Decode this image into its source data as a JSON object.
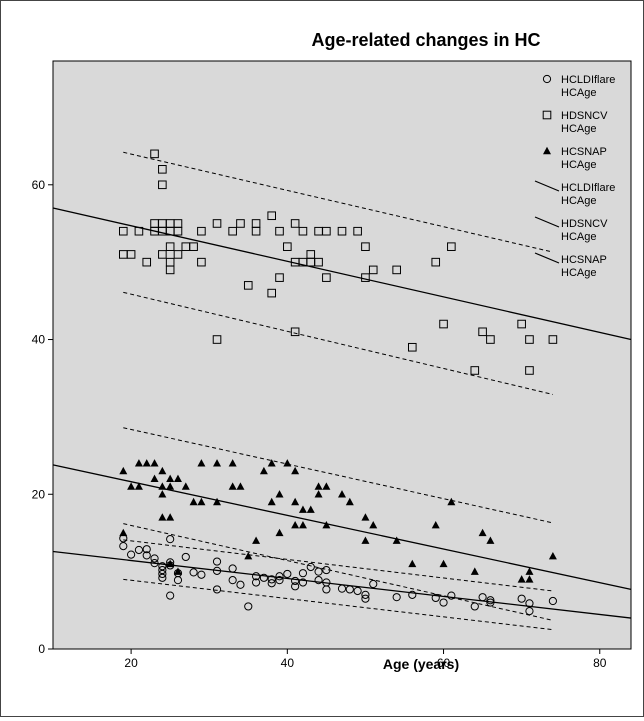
{
  "chart_data": {
    "type": "scatter",
    "title": "Age-related changes in HC",
    "xlabel": "Age (years)",
    "ylabel": "",
    "xlim": [
      10,
      84
    ],
    "ylim": [
      0,
      76
    ],
    "xticks": [
      20,
      40,
      60,
      80
    ],
    "yticks": [
      0,
      20,
      40,
      60
    ],
    "grid": false,
    "background_color": "#d9d9d9",
    "legend_position": "top-right",
    "legend": [
      {
        "label": "HCLDIflare HCAge",
        "lines": [
          "HCLDIflare",
          "HCAge"
        ],
        "marker": "circle"
      },
      {
        "label": "HDSNCV HCAge",
        "lines": [
          "HDSNCV",
          "HCAge"
        ],
        "marker": "square"
      },
      {
        "label": "HCSNAP HCAge",
        "lines": [
          "HCSNAP",
          "HCAge"
        ],
        "marker": "triangle"
      },
      {
        "label": "HCLDIflare HCAge",
        "lines": [
          "HCLDIflare",
          "HCAge"
        ],
        "marker": "line"
      },
      {
        "label": "HDSNCV HCAge",
        "lines": [
          "HDSNCV",
          "HCAge"
        ],
        "marker": "line"
      },
      {
        "label": "HCSNAP HCAge",
        "lines": [
          "HCSNAP",
          "HCAge"
        ],
        "marker": "line"
      }
    ],
    "series": [
      {
        "name": "HCLDIflare HCAge",
        "marker": "circle",
        "points": [
          [
            19,
            13.3
          ],
          [
            19,
            14.3
          ],
          [
            20,
            12.2
          ],
          [
            21,
            12.8
          ],
          [
            22,
            12.1
          ],
          [
            22,
            12.9
          ],
          [
            23,
            11.7
          ],
          [
            23,
            11.1
          ],
          [
            24,
            10.7
          ],
          [
            24,
            10.2
          ],
          [
            24,
            9.7
          ],
          [
            24,
            9.2
          ],
          [
            25,
            11.2
          ],
          [
            25,
            10.8
          ],
          [
            25,
            14.2
          ],
          [
            25,
            6.9
          ],
          [
            26,
            8.9
          ],
          [
            26,
            9.8
          ],
          [
            27,
            11.9
          ],
          [
            28,
            9.9
          ],
          [
            29,
            9.6
          ],
          [
            31,
            10.1
          ],
          [
            31,
            7.7
          ],
          [
            31,
            11.3
          ],
          [
            33,
            10.4
          ],
          [
            33,
            8.9
          ],
          [
            34,
            8.3
          ],
          [
            35,
            5.5
          ],
          [
            36,
            9.4
          ],
          [
            36,
            8.6
          ],
          [
            37,
            9.2
          ],
          [
            38,
            9.0
          ],
          [
            38,
            8.5
          ],
          [
            39,
            9.4
          ],
          [
            39,
            8.9
          ],
          [
            40,
            9.7
          ],
          [
            41,
            8.8
          ],
          [
            41,
            8.1
          ],
          [
            42,
            9.8
          ],
          [
            42,
            8.6
          ],
          [
            43,
            10.6
          ],
          [
            44,
            10.0
          ],
          [
            44,
            8.9
          ],
          [
            45,
            10.2
          ],
          [
            45,
            8.6
          ],
          [
            45,
            7.7
          ],
          [
            47,
            7.8
          ],
          [
            48,
            7.7
          ],
          [
            49,
            7.5
          ],
          [
            50,
            7.0
          ],
          [
            50,
            6.5
          ],
          [
            51,
            8.4
          ],
          [
            54,
            6.7
          ],
          [
            56,
            7.0
          ],
          [
            59,
            6.6
          ],
          [
            60,
            6.0
          ],
          [
            61,
            6.9
          ],
          [
            64,
            5.5
          ],
          [
            65,
            6.7
          ],
          [
            66,
            6.3
          ],
          [
            66,
            6.0
          ],
          [
            70,
            6.5
          ],
          [
            71,
            5.9
          ],
          [
            71,
            4.9
          ],
          [
            74,
            6.2
          ]
        ]
      },
      {
        "name": "HDSNCV HCAge",
        "marker": "square",
        "points": [
          [
            19,
            54
          ],
          [
            19,
            51
          ],
          [
            20,
            51
          ],
          [
            21,
            54
          ],
          [
            22,
            50
          ],
          [
            23,
            64
          ],
          [
            23,
            55
          ],
          [
            23,
            54
          ],
          [
            24,
            62
          ],
          [
            24,
            60
          ],
          [
            24,
            55
          ],
          [
            24,
            54
          ],
          [
            24,
            51
          ],
          [
            25,
            55
          ],
          [
            25,
            54
          ],
          [
            25,
            52
          ],
          [
            25,
            50
          ],
          [
            25,
            49
          ],
          [
            26,
            55
          ],
          [
            26,
            54
          ],
          [
            26,
            51
          ],
          [
            27,
            52
          ],
          [
            28,
            52
          ],
          [
            29,
            54
          ],
          [
            29,
            50
          ],
          [
            31,
            55
          ],
          [
            31,
            40
          ],
          [
            33,
            54
          ],
          [
            34,
            55
          ],
          [
            35,
            47
          ],
          [
            36,
            55
          ],
          [
            36,
            54
          ],
          [
            38,
            56
          ],
          [
            38,
            46
          ],
          [
            39,
            54
          ],
          [
            39,
            48
          ],
          [
            40,
            52
          ],
          [
            41,
            55
          ],
          [
            41,
            50
          ],
          [
            41,
            41
          ],
          [
            42,
            54
          ],
          [
            42,
            50
          ],
          [
            43,
            51
          ],
          [
            43,
            50
          ],
          [
            44,
            54
          ],
          [
            44,
            50
          ],
          [
            45,
            54
          ],
          [
            45,
            48
          ],
          [
            47,
            54
          ],
          [
            49,
            54
          ],
          [
            50,
            52
          ],
          [
            50,
            48
          ],
          [
            51,
            49
          ],
          [
            54,
            49
          ],
          [
            56,
            39
          ],
          [
            59,
            50
          ],
          [
            60,
            42
          ],
          [
            61,
            52
          ],
          [
            64,
            36
          ],
          [
            65,
            41
          ],
          [
            66,
            40
          ],
          [
            70,
            42
          ],
          [
            71,
            40
          ],
          [
            71,
            36
          ],
          [
            74,
            40
          ]
        ]
      },
      {
        "name": "HCSNAP HCAge",
        "marker": "triangle",
        "points": [
          [
            19,
            23
          ],
          [
            19,
            15
          ],
          [
            20,
            21
          ],
          [
            21,
            24
          ],
          [
            21,
            21
          ],
          [
            22,
            24
          ],
          [
            23,
            24
          ],
          [
            23,
            22
          ],
          [
            24,
            23
          ],
          [
            24,
            21
          ],
          [
            24,
            20
          ],
          [
            24,
            17
          ],
          [
            25,
            22
          ],
          [
            25,
            21
          ],
          [
            25,
            17
          ],
          [
            25,
            11
          ],
          [
            26,
            22
          ],
          [
            26,
            10
          ],
          [
            27,
            21
          ],
          [
            28,
            19
          ],
          [
            29,
            24
          ],
          [
            29,
            19
          ],
          [
            31,
            24
          ],
          [
            31,
            19
          ],
          [
            33,
            24
          ],
          [
            33,
            21
          ],
          [
            34,
            21
          ],
          [
            35,
            12
          ],
          [
            36,
            14
          ],
          [
            37,
            23
          ],
          [
            38,
            24
          ],
          [
            38,
            19
          ],
          [
            39,
            20
          ],
          [
            39,
            15
          ],
          [
            40,
            24
          ],
          [
            41,
            23
          ],
          [
            41,
            19
          ],
          [
            41,
            16
          ],
          [
            42,
            18
          ],
          [
            42,
            16
          ],
          [
            43,
            18
          ],
          [
            44,
            21
          ],
          [
            44,
            20
          ],
          [
            45,
            21
          ],
          [
            45,
            16
          ],
          [
            47,
            20
          ],
          [
            48,
            19
          ],
          [
            50,
            17
          ],
          [
            50,
            14
          ],
          [
            51,
            16
          ],
          [
            54,
            14
          ],
          [
            56,
            11
          ],
          [
            59,
            16
          ],
          [
            60,
            11
          ],
          [
            61,
            19
          ],
          [
            64,
            10
          ],
          [
            65,
            15
          ],
          [
            66,
            14
          ],
          [
            70,
            9
          ],
          [
            71,
            10
          ],
          [
            71,
            9
          ],
          [
            74,
            12
          ]
        ]
      }
    ],
    "fit_lines": [
      {
        "name": "HCLDIflare HCAge",
        "x": [
          10,
          84
        ],
        "y": [
          12.6,
          4.0
        ]
      },
      {
        "name": "HDSNCV HCAge",
        "x": [
          10,
          84
        ],
        "y": [
          57.0,
          40.0
        ]
      },
      {
        "name": "HCSNAP HCAge",
        "x": [
          10,
          84
        ],
        "y": [
          23.8,
          7.7
        ]
      }
    ],
    "confidence_lines": [
      {
        "name": "HCLDIflare HCAge",
        "bound": "upper",
        "x": [
          19,
          74
        ],
        "y": [
          14.1,
          7.5
        ]
      },
      {
        "name": "HCLDIflare HCAge",
        "bound": "lower",
        "x": [
          19,
          74
        ],
        "y": [
          9.0,
          2.5
        ]
      },
      {
        "name": "HDSNCV HCAge",
        "bound": "upper",
        "x": [
          19,
          74
        ],
        "y": [
          64.2,
          51.3
        ]
      },
      {
        "name": "HDSNCV HCAge",
        "bound": "lower",
        "x": [
          19,
          74
        ],
        "y": [
          46.1,
          32.9
        ]
      },
      {
        "name": "HCSNAP HCAge",
        "bound": "upper",
        "x": [
          19,
          74
        ],
        "y": [
          28.6,
          16.3
        ]
      },
      {
        "name": "HCSNAP HCAge",
        "bound": "lower",
        "x": [
          19,
          74
        ],
        "y": [
          16.2,
          3.7
        ]
      }
    ]
  }
}
